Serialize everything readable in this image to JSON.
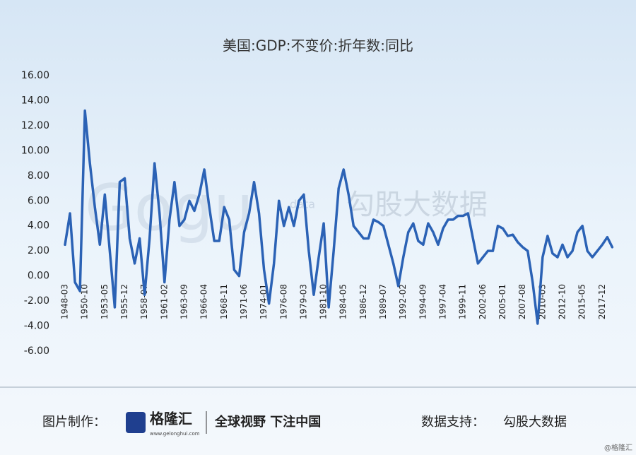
{
  "chart_data": {
    "type": "line",
    "title": "美国:GDP:不变价:折年数:同比",
    "categories": [
      "1948-03",
      null,
      null,
      null,
      "1950-10",
      null,
      null,
      null,
      "1953-05",
      null,
      null,
      null,
      "1955-12",
      null,
      null,
      null,
      "1958-07",
      null,
      null,
      null,
      "1961-02",
      null,
      null,
      null,
      "1963-09",
      null,
      null,
      null,
      "1966-04",
      null,
      null,
      null,
      "1968-11",
      null,
      null,
      null,
      "1971-06",
      null,
      null,
      null,
      "1974-01",
      null,
      null,
      null,
      "1976-08",
      null,
      null,
      null,
      "1979-03",
      null,
      null,
      null,
      "1981-10",
      null,
      null,
      null,
      "1984-05",
      null,
      null,
      null,
      "1986-12",
      null,
      null,
      null,
      "1989-07",
      null,
      null,
      null,
      "1992-02",
      null,
      null,
      null,
      "1994-09",
      null,
      null,
      null,
      "1997-04",
      null,
      null,
      null,
      "1999-11",
      null,
      null,
      null,
      "2002-06",
      null,
      null,
      null,
      "2005-01",
      null,
      null,
      null,
      "2007-08",
      null,
      null,
      null,
      "2010-03",
      null,
      null,
      null,
      "2012-10",
      null,
      null,
      null,
      "2015-05",
      null,
      null,
      null,
      "2017-12",
      null,
      null
    ],
    "series": [
      {
        "color": "#2b62b5",
        "values": [
          2.5,
          5.0,
          -0.5,
          -1.2,
          13.2,
          9.0,
          5.5,
          2.5,
          6.5,
          2.0,
          -2.5,
          7.5,
          7.8,
          3.0,
          1.0,
          3.0,
          -1.5,
          3.0,
          9.0,
          5.0,
          -0.5,
          4.5,
          7.5,
          4.0,
          4.5,
          6.0,
          5.2,
          6.5,
          8.5,
          5.5,
          2.8,
          2.8,
          5.5,
          4.5,
          0.5,
          0,
          3.5,
          5.0,
          7.5,
          5.0,
          0.5,
          -2.2,
          1.0,
          6.0,
          4.0,
          5.5,
          4.0,
          6.0,
          6.5,
          2.0,
          -1.5,
          1.5,
          4.2,
          -2.5,
          2.0,
          7.0,
          8.5,
          6.5,
          4.0,
          3.5,
          3.0,
          3.0,
          4.5,
          4.3,
          4.0,
          2.5,
          1.0,
          -0.8,
          1.5,
          3.5,
          4.2,
          2.8,
          2.5,
          4.2,
          3.5,
          2.5,
          3.8,
          4.5,
          4.5,
          4.8,
          4.8,
          5.0,
          3.0,
          1.0,
          1.5,
          2.0,
          2.0,
          4.0,
          3.8,
          3.2,
          3.3,
          2.7,
          2.3,
          2.0,
          -0.5,
          -3.8,
          1.5,
          3.2,
          1.8,
          1.5,
          2.5,
          1.5,
          2.0,
          3.5,
          4.0,
          2.0,
          1.5,
          2.0,
          2.5,
          3.1,
          2.3
        ]
      }
    ],
    "ylim": [
      -6,
      16
    ],
    "yticks": [
      {
        "value": -6,
        "label": "-6.00"
      },
      {
        "value": -4,
        "label": "-4.00"
      },
      {
        "value": -2,
        "label": "-2.00"
      },
      {
        "value": 0,
        "label": "0.00"
      },
      {
        "value": 2,
        "label": "2.00"
      },
      {
        "value": 4,
        "label": "4.00"
      },
      {
        "value": 6,
        "label": "6.00"
      },
      {
        "value": 8,
        "label": "8.00"
      },
      {
        "value": 10,
        "label": "10.00"
      },
      {
        "value": 12,
        "label": "12.00"
      },
      {
        "value": 14,
        "label": "14.00"
      },
      {
        "value": 16,
        "label": "16.00"
      }
    ],
    "grid": false,
    "watermark": {
      "logo": "Gogu",
      "sub": "data",
      "text": "勾股大数据"
    }
  },
  "footer": {
    "made_by": "图片制作：",
    "brand": "格隆汇",
    "site": "www.gelonghui.com",
    "slogan": "全球视野 下注中国",
    "support": "数据支持：",
    "support_name": "勾股大数据",
    "credit": "@格隆汇"
  }
}
